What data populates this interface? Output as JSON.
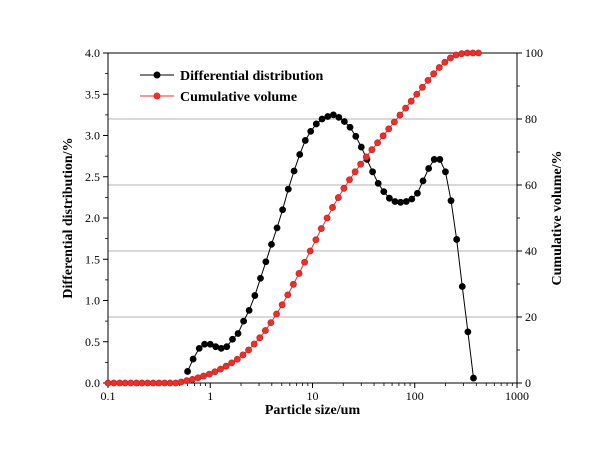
{
  "chart_data": {
    "type": "line",
    "x_scale": "log",
    "xlim": [
      0.1,
      1000
    ],
    "ylim_left": [
      0,
      4.0
    ],
    "ylim_right": [
      0,
      100
    ],
    "xlabel": "Particle size/um",
    "ylabel_left": "Differential distribution/%",
    "ylabel_right": "Cumulative volume/%",
    "x_ticks": [
      "0.1",
      "1",
      "10",
      "100",
      "1000"
    ],
    "y_ticks_left": [
      "0.0",
      "0.5",
      "1.0",
      "1.5",
      "2.0",
      "2.5",
      "3.0",
      "3.5",
      "4.0"
    ],
    "y_ticks_right": [
      "0",
      "20",
      "40",
      "60",
      "80",
      "100"
    ],
    "grid": "horizontal lines at right-axis 20, 40, 60, 80",
    "legend_position": "top-left",
    "series": [
      {
        "name": "Differential distribution",
        "axis": "left",
        "color": "#000000",
        "x": [
          0.6,
          0.68,
          0.78,
          0.88,
          1.0,
          1.13,
          1.28,
          1.45,
          1.65,
          1.87,
          2.12,
          2.4,
          2.73,
          3.1,
          3.5,
          3.97,
          4.5,
          5.1,
          5.8,
          6.6,
          7.5,
          8.5,
          9.6,
          10.9,
          12.4,
          14.1,
          16.0,
          18.1,
          20.5,
          23.3,
          26.5,
          30.0,
          34.1,
          38.7,
          43.9,
          49.8,
          56.5,
          64.1,
          72.7,
          82.5,
          93.6,
          106.2,
          120.5,
          136.7,
          155.0,
          175.9,
          199.6,
          226.4,
          256.9,
          291.5,
          330.8,
          375.3
        ],
        "y": [
          0.14,
          0.29,
          0.42,
          0.47,
          0.47,
          0.44,
          0.42,
          0.44,
          0.53,
          0.6,
          0.75,
          0.88,
          1.06,
          1.27,
          1.47,
          1.68,
          1.88,
          2.1,
          2.35,
          2.57,
          2.77,
          2.94,
          3.05,
          3.14,
          3.2,
          3.23,
          3.25,
          3.22,
          3.17,
          3.1,
          2.99,
          2.86,
          2.71,
          2.56,
          2.42,
          2.32,
          2.24,
          2.2,
          2.19,
          2.2,
          2.23,
          2.3,
          2.45,
          2.6,
          2.71,
          2.71,
          2.56,
          2.21,
          1.74,
          1.17,
          0.62,
          0.06
        ]
      },
      {
        "name": "Cumulative volume",
        "axis": "right",
        "color": "#e8302c",
        "x": [
          0.1,
          0.114,
          0.13,
          0.147,
          0.167,
          0.19,
          0.215,
          0.244,
          0.277,
          0.315,
          0.357,
          0.405,
          0.46,
          0.52,
          0.59,
          0.67,
          0.76,
          0.86,
          0.98,
          1.11,
          1.26,
          1.43,
          1.62,
          1.84,
          2.09,
          2.37,
          2.69,
          3.05,
          3.46,
          3.92,
          4.45,
          5.05,
          5.73,
          6.5,
          7.38,
          8.37,
          9.5,
          10.8,
          12.2,
          13.9,
          15.7,
          17.9,
          20.3,
          23.0,
          26.1,
          29.6,
          33.6,
          38.1,
          43.3,
          49.1,
          55.7,
          63.2,
          71.7,
          81.4,
          92.3,
          104.7,
          118.8,
          134.8,
          153.0,
          173.6,
          196.9,
          223.4,
          253.5,
          287.7,
          326.4,
          370.3,
          420.2
        ],
        "y": [
          0,
          0,
          0,
          0,
          0,
          0,
          0,
          0,
          0,
          0,
          0,
          0,
          0,
          0.3,
          0.7,
          1.1,
          1.6,
          2.1,
          2.7,
          3.4,
          4.2,
          5.1,
          6.1,
          7.2,
          8.5,
          10.0,
          11.8,
          13.7,
          15.9,
          18.3,
          20.9,
          23.7,
          26.7,
          29.9,
          33.2,
          36.6,
          40.0,
          43.4,
          46.8,
          50.0,
          53.2,
          56.2,
          59.0,
          61.6,
          64.0,
          66.3,
          68.5,
          70.7,
          72.8,
          74.9,
          77.0,
          79.1,
          81.2,
          83.3,
          85.4,
          87.5,
          89.6,
          91.7,
          93.7,
          95.6,
          97.2,
          98.5,
          99.4,
          99.8,
          100,
          100,
          100
        ]
      }
    ]
  }
}
